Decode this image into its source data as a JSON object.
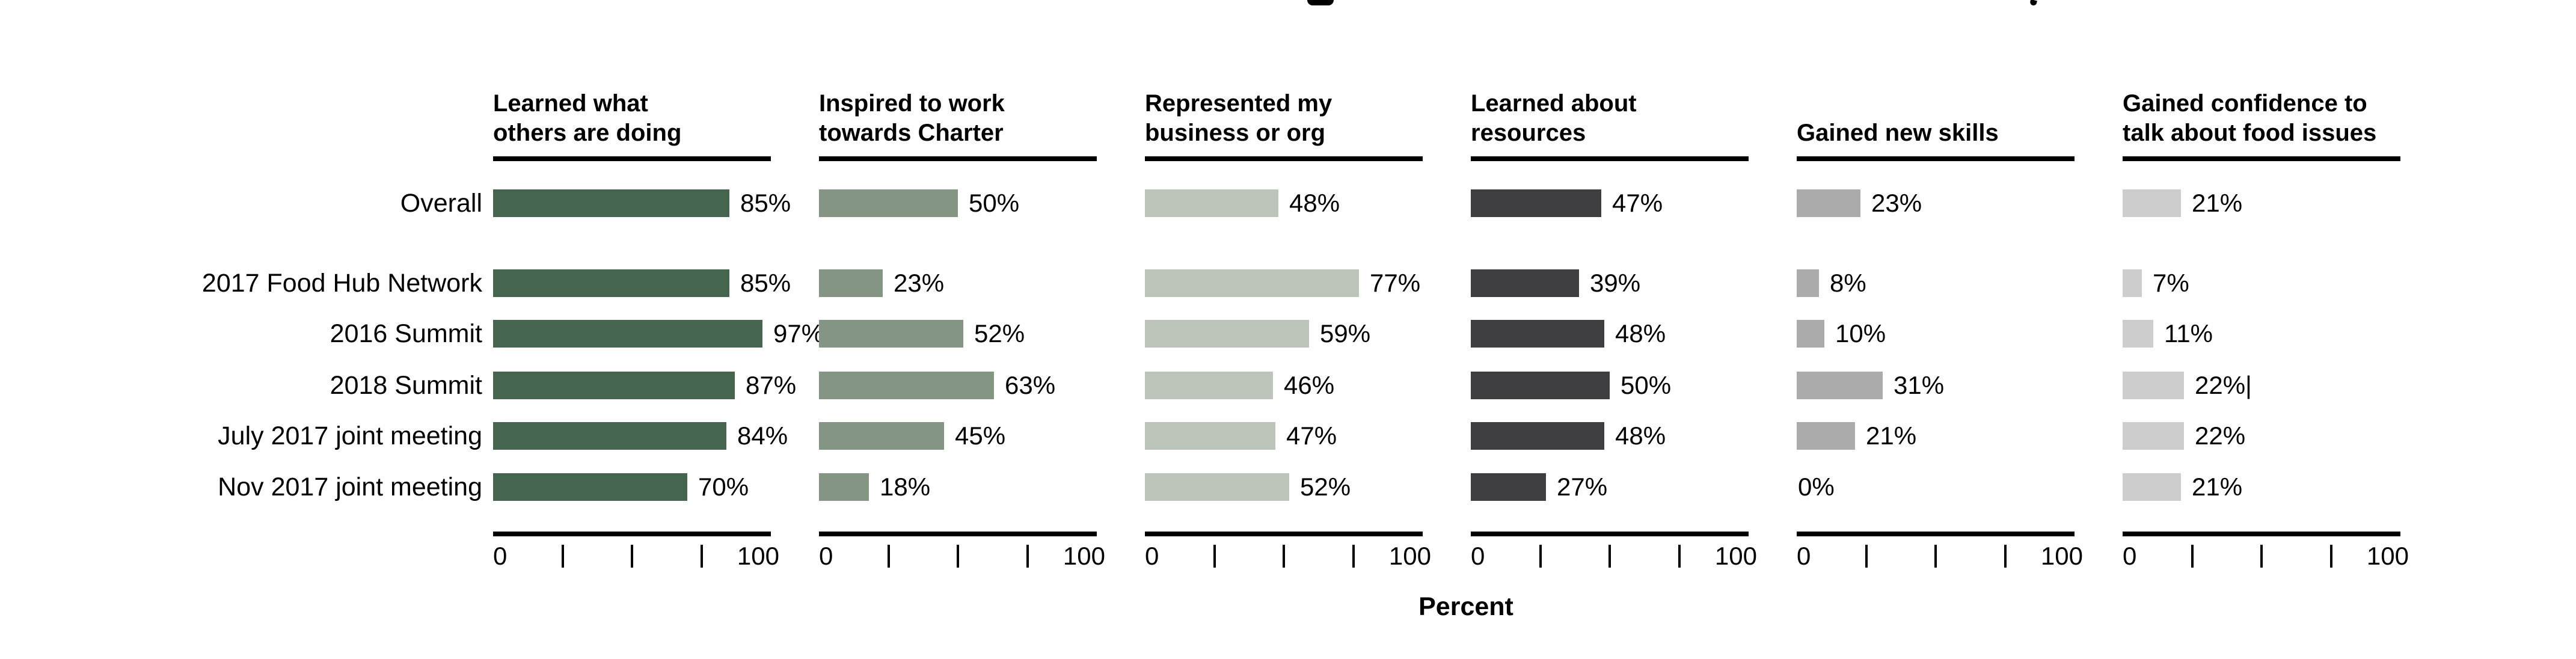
{
  "chart_data": {
    "type": "bar",
    "orientation": "horizontal",
    "xlabel": "Percent",
    "xlim": [
      0,
      100
    ],
    "x_ticks": [
      0,
      25,
      50,
      75,
      100
    ],
    "x_axis_end_labels": [
      "0",
      "100"
    ],
    "grid": "off",
    "legend": "none",
    "categories": [
      "Overall",
      "2017 Food Hub Network",
      "2016 Summit",
      "2018 Summit",
      "July 2017 joint meeting",
      "Nov 2017 joint meeting"
    ],
    "series": [
      {
        "name": "Learned what others are doing",
        "header_lines": [
          "Learned what",
          "others are doing"
        ],
        "color": "#46654f",
        "values": [
          85,
          85,
          97,
          87,
          84,
          70
        ],
        "labels": [
          "85%",
          "85%",
          "97%",
          "87%",
          "84%",
          "70%"
        ]
      },
      {
        "name": "Inspired to work towards Charter",
        "header_lines": [
          "Inspired to work",
          "towards Charter"
        ],
        "color": "#849584",
        "values": [
          50,
          23,
          52,
          63,
          45,
          18
        ],
        "labels": [
          "50%",
          "23%",
          "52%",
          "63%",
          "45%",
          "18%"
        ]
      },
      {
        "name": "Represented my business or org",
        "header_lines": [
          "Represented my",
          "business or org"
        ],
        "color": "#bdc5bb",
        "values": [
          48,
          77,
          59,
          46,
          47,
          52
        ],
        "labels": [
          "48%",
          "77%",
          "59%",
          "46%",
          "47%",
          "52%"
        ]
      },
      {
        "name": "Learned about resources",
        "header_lines": [
          "Learned about",
          "resources"
        ],
        "color": "#3f3f41",
        "values": [
          47,
          39,
          48,
          50,
          48,
          27
        ],
        "labels": [
          "47%",
          "39%",
          "48%",
          "50%",
          "48%",
          "27%"
        ]
      },
      {
        "name": "Gained new skills",
        "header_lines": [
          "Gained new skills"
        ],
        "color": "#ababab",
        "values": [
          23,
          8,
          10,
          31,
          21,
          0
        ],
        "labels": [
          "23%",
          "8%",
          "10%",
          "31%",
          "21%",
          "0%"
        ]
      },
      {
        "name": "Gained confidence to talk about food issues",
        "header_lines": [
          "Gained confidence to",
          "talk about food issues"
        ],
        "color": "#cdcdcd",
        "values": [
          21,
          7,
          11,
          22,
          22,
          21
        ],
        "labels": [
          "21%",
          "7%",
          "11%",
          "22%|",
          "22%",
          "21%"
        ]
      }
    ]
  }
}
